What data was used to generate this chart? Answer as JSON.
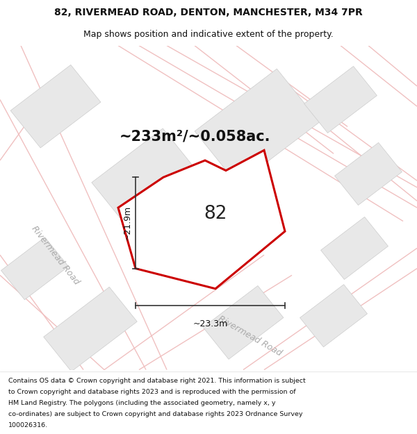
{
  "title_line1": "82, RIVERMEAD ROAD, DENTON, MANCHESTER, M34 7PR",
  "title_line2": "Map shows position and indicative extent of the property.",
  "area_text": "~233m²/~0.058ac.",
  "plot_number": "82",
  "dim_width": "~23.3m",
  "dim_height": "~21.9m",
  "road_label": "Rivermead Road",
  "footer_lines": [
    "Contains OS data © Crown copyright and database right 2021. This information is subject",
    "to Crown copyright and database rights 2023 and is reproduced with the permission of",
    "HM Land Registry. The polygons (including the associated geometry, namely x, y",
    "co-ordinates) are subject to Crown copyright and database rights 2023 Ordnance Survey",
    "100026316."
  ],
  "map_bg": "#ffffff",
  "plot_fill": "#ffffff",
  "plot_edge": "#cc0000",
  "neighbor_fill": "#e8e8e8",
  "neighbor_edge": "#cccccc",
  "road_line_color": "#f0c0c0",
  "road_label_color": "#aaaaaa",
  "dim_line_color": "#333333",
  "text_color": "#111111",
  "title_fontsize": 10,
  "subtitle_fontsize": 9,
  "area_fontsize": 15,
  "plot_label_fontsize": 19,
  "dim_fontsize": 9,
  "road_label_fontsize": 9,
  "footer_fontsize": 6.8
}
